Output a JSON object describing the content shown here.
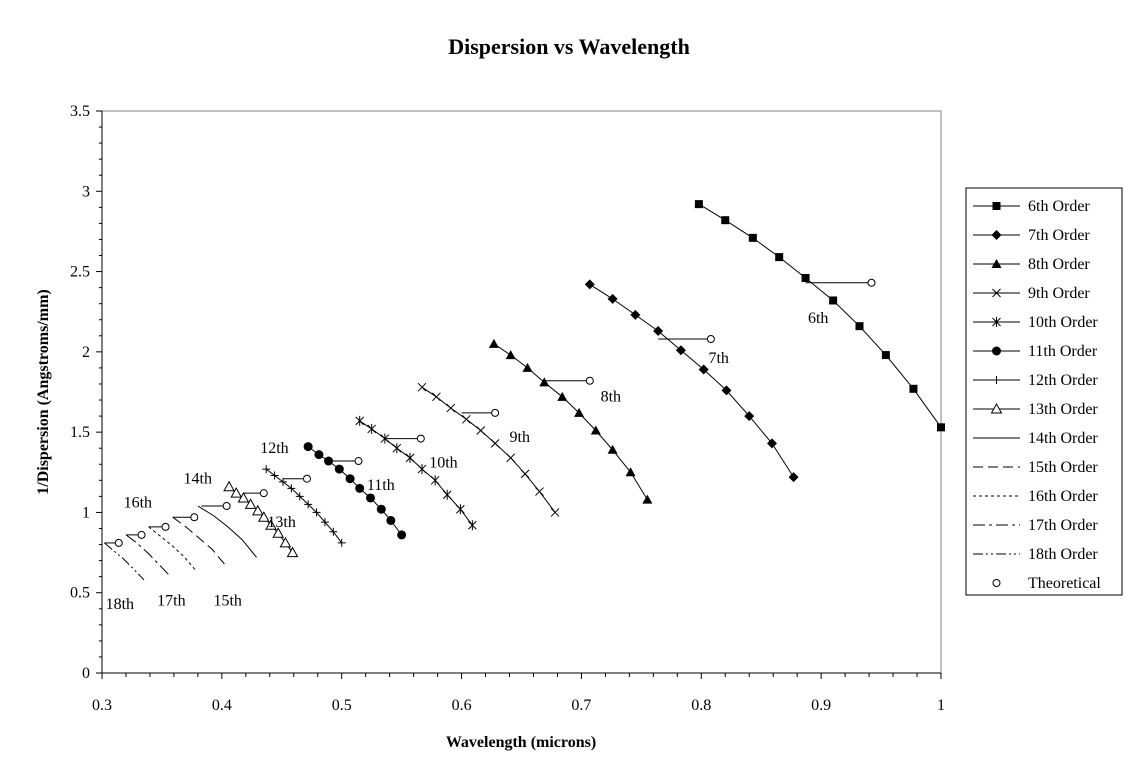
{
  "chart_data": {
    "type": "line",
    "title": "Dispersion vs Wavelength",
    "xlabel": "Wavelength (microns)",
    "ylabel": "1/Dispersion (Angstroms/mm)",
    "xlim": [
      0.3,
      1.0
    ],
    "ylim": [
      0,
      3.5
    ],
    "xticks": [
      "0.3",
      "0.4",
      "0.5",
      "0.6",
      "0.7",
      "0.8",
      "0.9",
      "1"
    ],
    "yticks": [
      "0",
      "0.5",
      "1",
      "1.5",
      "2",
      "2.5",
      "3",
      "3.5"
    ],
    "grid": false,
    "legend_position": "right",
    "series": [
      {
        "name": "6th Order",
        "marker": "square",
        "dash": "",
        "x": [
          0.798,
          0.82,
          0.843,
          0.865,
          0.887,
          0.91,
          0.932,
          0.954,
          0.977,
          1.0
        ],
        "y": [
          2.92,
          2.82,
          2.71,
          2.59,
          2.46,
          2.32,
          2.16,
          1.98,
          1.77,
          1.53
        ]
      },
      {
        "name": "7th Order",
        "marker": "diamond",
        "dash": "",
        "x": [
          0.707,
          0.726,
          0.745,
          0.764,
          0.783,
          0.802,
          0.821,
          0.84,
          0.859,
          0.877
        ],
        "y": [
          2.42,
          2.33,
          2.23,
          2.13,
          2.01,
          1.89,
          1.76,
          1.6,
          1.43,
          1.22
        ]
      },
      {
        "name": "8th Order",
        "marker": "triangle",
        "dash": "",
        "x": [
          0.627,
          0.641,
          0.655,
          0.669,
          0.684,
          0.698,
          0.712,
          0.726,
          0.741,
          0.755
        ],
        "y": [
          2.05,
          1.98,
          1.9,
          1.81,
          1.72,
          1.62,
          1.51,
          1.39,
          1.25,
          1.08
        ]
      },
      {
        "name": "9th Order",
        "marker": "x",
        "dash": "",
        "x": [
          0.567,
          0.579,
          0.591,
          0.604,
          0.616,
          0.628,
          0.641,
          0.653,
          0.665,
          0.678
        ],
        "y": [
          1.78,
          1.72,
          1.65,
          1.58,
          1.51,
          1.43,
          1.34,
          1.24,
          1.13,
          1.0
        ]
      },
      {
        "name": "10th Order",
        "marker": "asterisk",
        "dash": "",
        "x": [
          0.515,
          0.525,
          0.536,
          0.546,
          0.557,
          0.567,
          0.578,
          0.588,
          0.599,
          0.609
        ],
        "y": [
          1.57,
          1.52,
          1.46,
          1.4,
          1.34,
          1.27,
          1.2,
          1.11,
          1.02,
          0.92
        ]
      },
      {
        "name": "11th Order",
        "marker": "circle",
        "dash": "",
        "x": [
          0.472,
          0.481,
          0.489,
          0.498,
          0.507,
          0.515,
          0.524,
          0.533,
          0.541,
          0.55
        ],
        "y": [
          1.41,
          1.36,
          1.32,
          1.27,
          1.21,
          1.15,
          1.09,
          1.02,
          0.95,
          0.86
        ]
      },
      {
        "name": "12th Order",
        "marker": "plus",
        "dash": "",
        "x": [
          0.437,
          0.444,
          0.451,
          0.458,
          0.465,
          0.472,
          0.479,
          0.486,
          0.493,
          0.5
        ],
        "y": [
          1.27,
          1.23,
          1.19,
          1.15,
          1.1,
          1.05,
          1.0,
          0.94,
          0.88,
          0.81
        ]
      },
      {
        "name": "13th Order",
        "marker": "open-triangle",
        "dash": "",
        "x": [
          0.406,
          0.412,
          0.418,
          0.424,
          0.43,
          0.435,
          0.441,
          0.447,
          0.453,
          0.459
        ],
        "y": [
          1.16,
          1.12,
          1.09,
          1.05,
          1.01,
          0.97,
          0.92,
          0.87,
          0.81,
          0.75
        ]
      },
      {
        "name": "14th Order",
        "marker": "none",
        "dash": "",
        "x": [
          0.38,
          0.393,
          0.405,
          0.417,
          0.429
        ],
        "y": [
          1.04,
          0.98,
          0.91,
          0.83,
          0.72
        ]
      },
      {
        "name": "15th Order",
        "marker": "none",
        "dash": "10,5",
        "x": [
          0.359,
          0.37,
          0.381,
          0.392,
          0.403
        ],
        "y": [
          0.97,
          0.91,
          0.84,
          0.77,
          0.67
        ]
      },
      {
        "name": "16th Order",
        "marker": "none",
        "dash": "3,3",
        "x": [
          0.339,
          0.349,
          0.359,
          0.369,
          0.378
        ],
        "y": [
          0.91,
          0.85,
          0.79,
          0.72,
          0.64
        ]
      },
      {
        "name": "17th Order",
        "marker": "none",
        "dash": "12,4,3,4",
        "x": [
          0.32,
          0.329,
          0.338,
          0.347,
          0.356
        ],
        "y": [
          0.86,
          0.81,
          0.75,
          0.68,
          0.61
        ]
      },
      {
        "name": "18th Order",
        "marker": "none",
        "dash": "10,3,2,3,2,3",
        "x": [
          0.302,
          0.31,
          0.318,
          0.326,
          0.335
        ],
        "y": [
          0.81,
          0.76,
          0.71,
          0.65,
          0.58
        ]
      }
    ],
    "theoretical": {
      "name": "Theoretical",
      "marker": "open-circle",
      "points": [
        {
          "x": 0.942,
          "y": 2.43,
          "x0": 0.887
        },
        {
          "x": 0.808,
          "y": 2.08,
          "x0": 0.764
        },
        {
          "x": 0.707,
          "y": 1.82,
          "x0": 0.669
        },
        {
          "x": 0.628,
          "y": 1.62,
          "x0": 0.6
        },
        {
          "x": 0.566,
          "y": 1.46,
          "x0": 0.536
        },
        {
          "x": 0.514,
          "y": 1.32,
          "x0": 0.489
        },
        {
          "x": 0.471,
          "y": 1.21,
          "x0": 0.451
        },
        {
          "x": 0.435,
          "y": 1.12,
          "x0": 0.418
        },
        {
          "x": 0.404,
          "y": 1.04,
          "x0": 0.383
        },
        {
          "x": 0.377,
          "y": 0.97,
          "x0": 0.359
        },
        {
          "x": 0.353,
          "y": 0.91,
          "x0": 0.339
        },
        {
          "x": 0.333,
          "y": 0.86,
          "x0": 0.32
        },
        {
          "x": 0.314,
          "y": 0.81,
          "x0": 0.302
        }
      ]
    },
    "annotations": [
      {
        "text": "6th",
        "x": 0.889,
        "y": 2.18
      },
      {
        "text": "7th",
        "x": 0.806,
        "y": 1.93
      },
      {
        "text": "8th",
        "x": 0.716,
        "y": 1.69
      },
      {
        "text": "9th",
        "x": 0.64,
        "y": 1.44
      },
      {
        "text": "10th",
        "x": 0.573,
        "y": 1.28
      },
      {
        "text": "11th",
        "x": 0.521,
        "y": 1.14
      },
      {
        "text": "12th",
        "x": 0.432,
        "y": 1.37
      },
      {
        "text": "13th",
        "x": 0.438,
        "y": 0.91
      },
      {
        "text": "14th",
        "x": 0.368,
        "y": 1.18
      },
      {
        "text": "15th",
        "x": 0.393,
        "y": 0.42
      },
      {
        "text": "16th",
        "x": 0.318,
        "y": 1.03
      },
      {
        "text": "17th",
        "x": 0.346,
        "y": 0.42
      },
      {
        "text": "18th",
        "x": 0.303,
        "y": 0.4
      }
    ]
  }
}
